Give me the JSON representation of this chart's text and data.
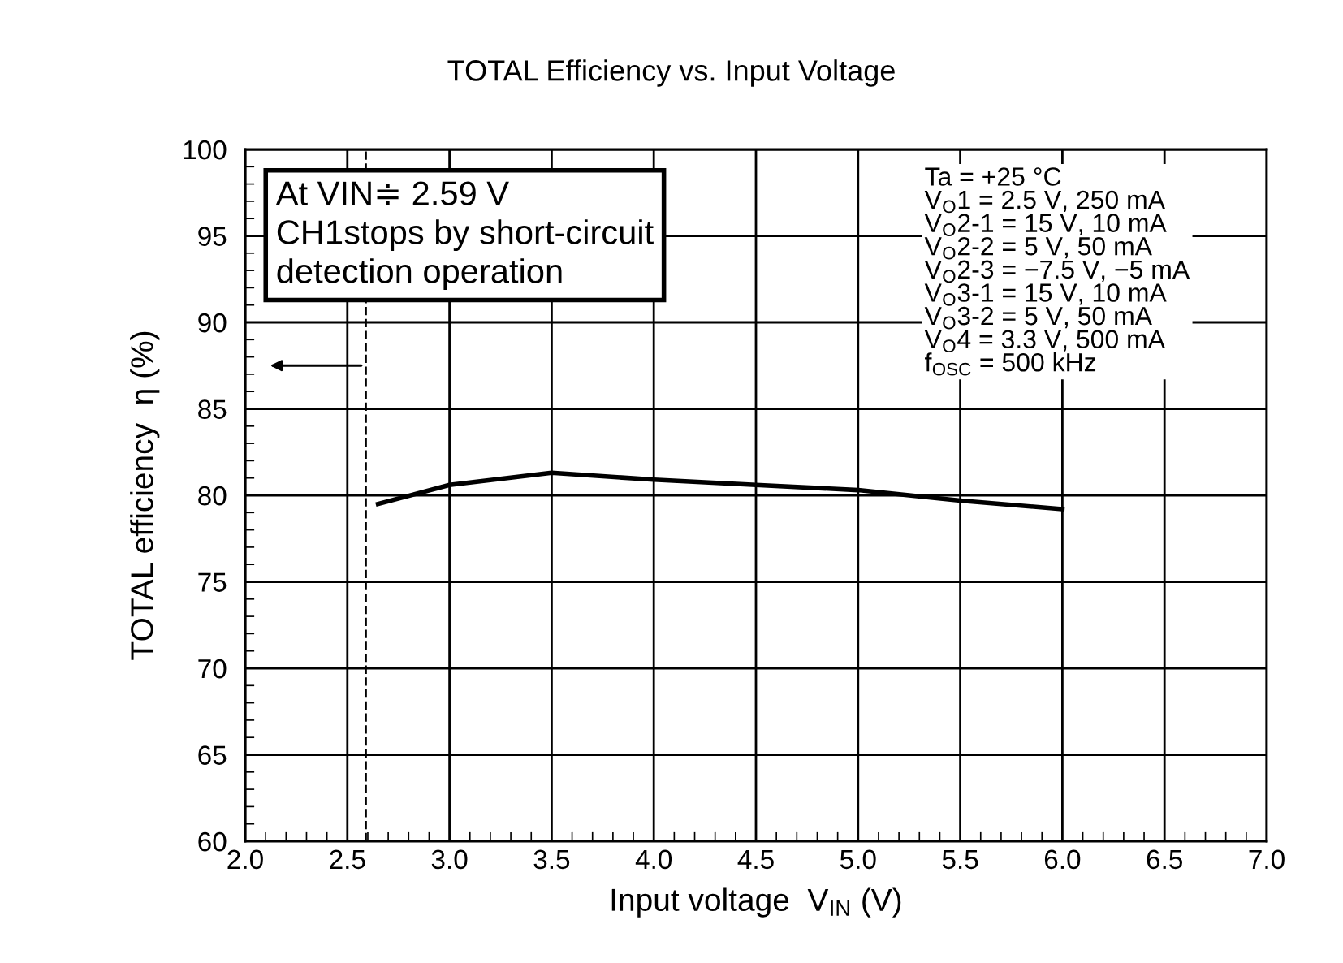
{
  "chart_data": {
    "type": "line",
    "title": "TOTAL Efficiency vs. Input Voltage",
    "xlabel": "Input voltage  V$_{IN}$ (V)",
    "ylabel": "TOTAL efficiency  η (%)",
    "x": [
      2.65,
      3.0,
      3.5,
      4.0,
      4.5,
      5.0,
      5.5,
      6.0
    ],
    "series": [
      {
        "color": "#000000",
        "values": [
          79.5,
          80.6,
          81.3,
          80.9,
          80.6,
          80.3,
          79.7,
          79.2
        ]
      }
    ],
    "xlim": [
      2.0,
      7.0
    ],
    "xticks": [
      {
        "value": 2.0,
        "label": "2.0"
      },
      {
        "value": 2.5,
        "label": "2.5"
      },
      {
        "value": 3.0,
        "label": "3.0"
      },
      {
        "value": 3.5,
        "label": "3.5"
      },
      {
        "value": 4.0,
        "label": "4.0"
      },
      {
        "value": 4.5,
        "label": "4.5"
      },
      {
        "value": 5.0,
        "label": "5.0"
      },
      {
        "value": 5.5,
        "label": "5.5"
      },
      {
        "value": 6.0,
        "label": "6.0"
      },
      {
        "value": 6.5,
        "label": "6.5"
      },
      {
        "value": 7.0,
        "label": "7.0"
      }
    ],
    "ylim": [
      60,
      100
    ],
    "yticks": [
      60,
      65,
      70,
      75,
      80,
      85,
      90,
      95,
      100
    ],
    "ref_lines": [
      {
        "axis": "x",
        "value": 2.59,
        "line_style": "dashed",
        "color": "#000000"
      }
    ],
    "annotations": [
      "At VIN≑ 2.59 V\nCH1stops by short-circuit\ndetection operation",
      "Ta = +25 °C\nV$_{O}$1 = 2.5 V, 250 mA\nV$_{O}$2-1 = 15 V, 10 mA\nV$_{O}$2-2 = 5 V, 50 mA\nV$_{O}$2-3 = −7.5 V, −5 mA\nV$_{O}$3-1 = 15 V, 10 mA\nV$_{O}$3-2 = 5 V, 50 mA\nV$_{O}$4 = 3.3 V, 500 mA\nf$_{OSC}$ = 500 kHz"
    ],
    "grid": true,
    "marker": "none",
    "line_style": "solid"
  }
}
